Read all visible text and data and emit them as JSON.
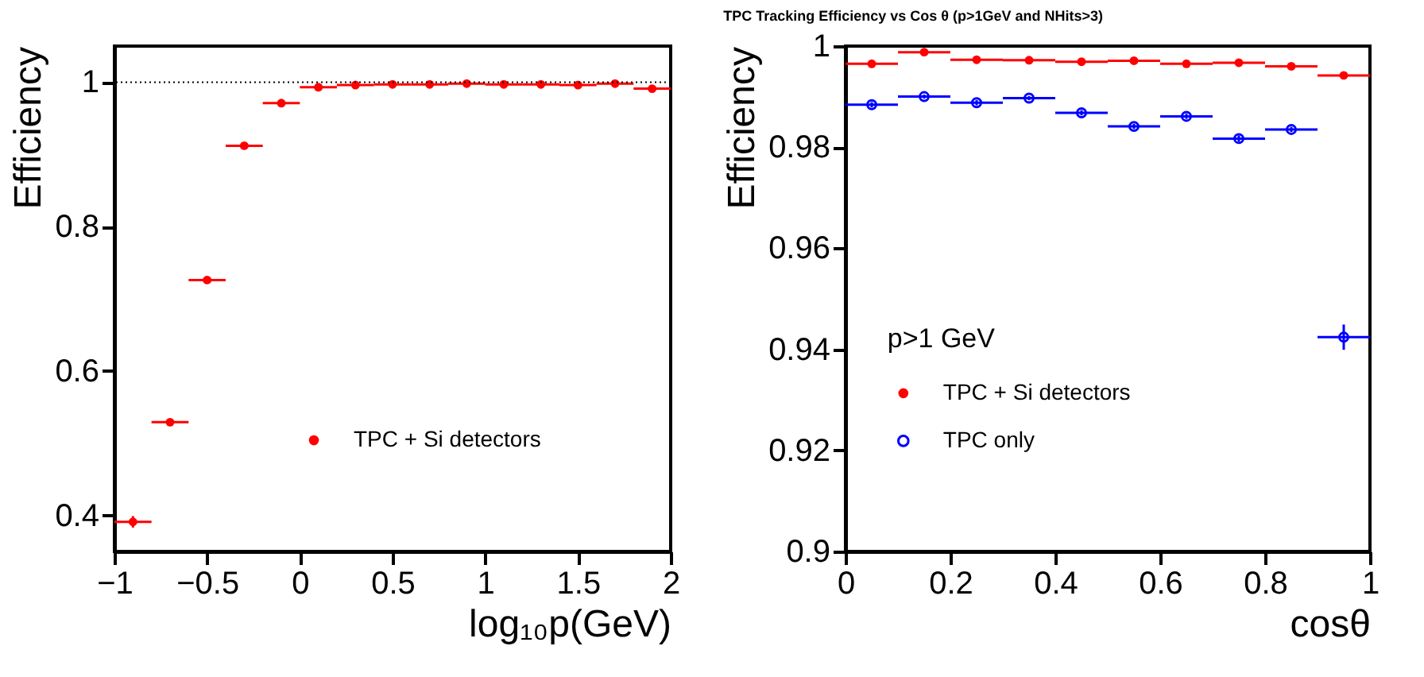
{
  "chart_data": [
    {
      "type": "scatter",
      "xlabel": "log₁₀p(GeV)",
      "ylabel": "Efficiency",
      "x": [
        -0.9,
        -0.7,
        -0.5,
        -0.3,
        -0.1,
        0.1,
        0.3,
        0.5,
        0.7,
        0.9,
        1.1,
        1.3,
        1.5,
        1.7,
        1.9
      ],
      "series": [
        {
          "name": "TPC + Si detectors",
          "color": "#ff0000",
          "marker": "circle",
          "values": [
            0.391,
            0.529,
            0.726,
            0.912,
            0.971,
            0.993,
            0.996,
            0.997,
            0.997,
            0.998,
            0.997,
            0.997,
            0.996,
            0.998,
            0.991
          ],
          "xerrors": [
            0.1,
            0.1,
            0.1,
            0.1,
            0.1,
            0.1,
            0.1,
            0.1,
            0.1,
            0.1,
            0.1,
            0.1,
            0.1,
            0.1,
            0.1
          ],
          "errors": [
            0.008,
            0.005,
            null,
            null,
            null,
            null,
            null,
            null,
            null,
            null,
            null,
            null,
            null,
            null,
            0.005
          ]
        }
      ],
      "xlim": [
        -1,
        2
      ],
      "ylim": [
        0.35,
        1.05
      ],
      "xticks": [
        -1,
        -0.5,
        0,
        0.5,
        1,
        1.5,
        2
      ],
      "yticks": [
        0.4,
        0.6,
        0.8,
        1
      ],
      "ref_lines": [
        {
          "axis": "y",
          "value": 1,
          "color": "#000000",
          "line_style": "dotted"
        }
      ],
      "legend": "bottom",
      "grid": false
    },
    {
      "type": "scatter",
      "title": "TPC Tracking Efficiency vs Cos θ (p>1GeV and NHits>3)",
      "xlabel": "cosθ",
      "ylabel": "Efficiency",
      "legend_title": "p>1 GeV",
      "x": [
        0.05,
        0.15,
        0.25,
        0.35,
        0.45,
        0.55,
        0.65,
        0.75,
        0.85,
        0.95
      ],
      "series": [
        {
          "name": "TPC + Si detectors",
          "color": "#ff0000",
          "marker": "circle",
          "values": [
            0.9965,
            0.9988,
            0.9973,
            0.9972,
            0.9969,
            0.9971,
            0.9965,
            0.9967,
            0.996,
            0.9942
          ],
          "xerrors": [
            0.05,
            0.05,
            0.05,
            0.05,
            0.05,
            0.05,
            0.05,
            0.05,
            0.05,
            0.05
          ],
          "errors": [
            null,
            null,
            null,
            null,
            null,
            null,
            null,
            null,
            null,
            0.0005
          ]
        },
        {
          "name": "TPC only",
          "color": "#0000ff",
          "marker": "circle_open",
          "values": [
            0.9884,
            0.99,
            0.9888,
            0.9897,
            0.9868,
            0.9841,
            0.9861,
            0.9817,
            0.9835,
            0.9424
          ],
          "xerrors": [
            0.05,
            0.05,
            0.05,
            0.05,
            0.05,
            0.05,
            0.05,
            0.05,
            0.05,
            0.05
          ],
          "errors": [
            0.0005,
            0.0004,
            0.0005,
            0.0004,
            0.0005,
            0.0005,
            0.0005,
            0.0006,
            0.0005,
            0.0025
          ]
        }
      ],
      "xlim": [
        0,
        1
      ],
      "ylim": [
        0.9,
        1
      ],
      "xticks": [
        0,
        0.2,
        0.4,
        0.6,
        0.8,
        1
      ],
      "yticks": [
        0.9,
        0.92,
        0.94,
        0.96,
        0.98,
        1
      ],
      "legend": "bottom left",
      "grid": false
    }
  ]
}
